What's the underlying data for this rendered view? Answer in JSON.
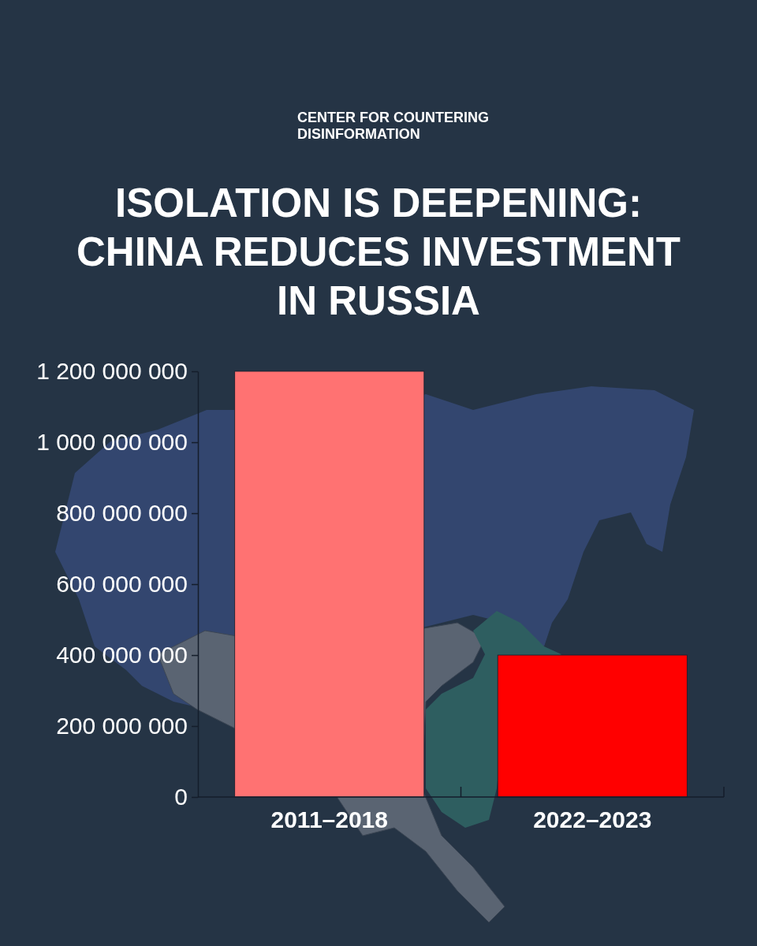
{
  "chart_data": {
    "type": "bar",
    "title": "ISOLATION IS DEEPENING: CHINA REDUCES INVESTMENT IN RUSSIA",
    "annotations": [
      "CENTER FOR COUNTERING DISINFORMATION"
    ],
    "categories": [
      "2011–2018",
      "2022–2023"
    ],
    "values": [
      1200000000,
      400000000
    ],
    "colors": [
      "#ff7272",
      "#ff0000"
    ],
    "ylim": [
      0,
      1200000000
    ],
    "yticks": [
      0,
      {
        "value": 200000000,
        "label": "200 000 000"
      },
      {
        "value": 400000000,
        "label": "400 000 000"
      },
      {
        "value": 600000000,
        "label": "600 000 000"
      },
      {
        "value": 800000000,
        "label": "800 000 000"
      },
      {
        "value": 1000000000,
        "label": "1 000 000 000"
      },
      {
        "value": 1200000000,
        "label": "1 200 000 000"
      }
    ]
  }
}
